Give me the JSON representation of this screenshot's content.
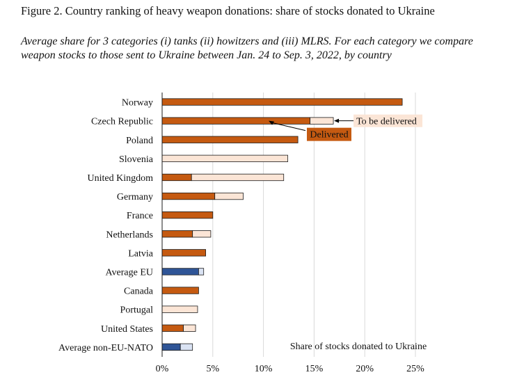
{
  "figure": {
    "title": "Figure 2. Country ranking of heavy weapon donations: share of stocks donated to Ukraine",
    "subtitle": "Average share for 3 categories (i) tanks (ii) howitzers and (iii) MLRS. For each category we compare weapon stocks to those sent to Ukraine between Jan. 24 to Sep. 3, 2022, by country"
  },
  "chart_data": {
    "type": "bar",
    "orientation": "horizontal",
    "stacked": true,
    "title": "",
    "xlabel": "Share of stocks donated to Ukraine",
    "ylabel": "",
    "xlim": [
      0,
      25
    ],
    "x_ticks": [
      "0%",
      "5%",
      "10%",
      "15%",
      "20%",
      "25%"
    ],
    "x_tick_values": [
      0,
      5,
      10,
      15,
      20,
      25
    ],
    "grid": "vertical",
    "categories": [
      "Norway",
      "Czech Republic",
      "Poland",
      "Slovenia",
      "United Kingdom",
      "Germany",
      "France",
      "Netherlands",
      "Latvia",
      "Average EU",
      "Canada",
      "Portugal",
      "United States",
      "Average non-EU-NATO"
    ],
    "series": [
      {
        "name": "Delivered",
        "values": [
          23.7,
          14.6,
          13.4,
          0,
          2.9,
          5.2,
          5.0,
          3.0,
          4.3,
          3.6,
          3.6,
          0,
          2.1,
          1.8
        ]
      },
      {
        "name": "To be delivered",
        "values": [
          0,
          2.3,
          0,
          12.4,
          9.1,
          2.8,
          0,
          1.8,
          0,
          0.5,
          0,
          3.5,
          1.2,
          1.2
        ]
      }
    ],
    "average_categories": [
      "Average EU",
      "Average non-EU-NATO"
    ],
    "colors": {
      "delivered": "#c55a11",
      "to_be_delivered": "#fbe5d6",
      "average_delivered": "#2f5597",
      "average_to_be_delivered": "#dae3f3",
      "bar_edge": "#1a1a1a",
      "grid": "#d9d9d9",
      "delivered_label_bg": "#c55a11",
      "delivered_label_text": "#ffffff",
      "to_be_delivered_label_bg": "#fbe5d6"
    },
    "annotations": [
      {
        "label": "To be delivered",
        "target_category": "Czech Republic",
        "target_series": "To be delivered"
      },
      {
        "label": "Delivered",
        "target_category": "Czech Republic",
        "target_series": "Delivered"
      }
    ]
  }
}
